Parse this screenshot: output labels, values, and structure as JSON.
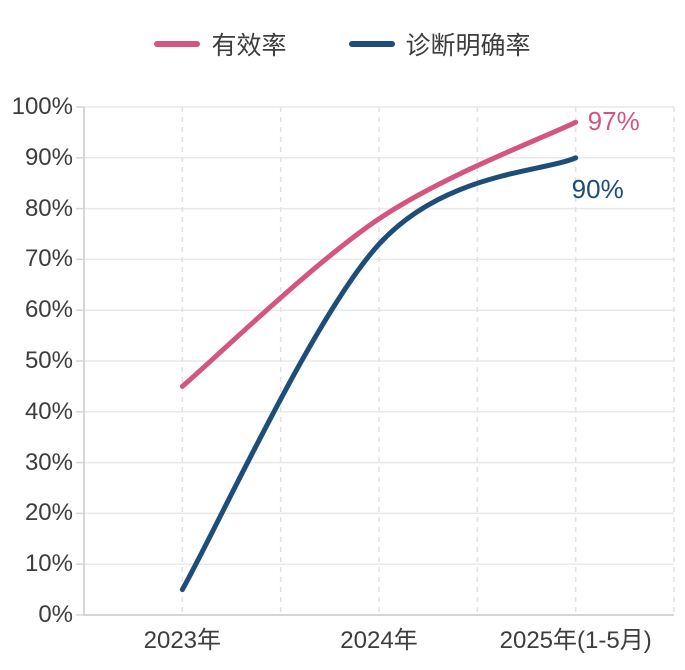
{
  "chart_data": {
    "type": "line",
    "smooth": true,
    "title": "",
    "xlabel": "",
    "ylabel": "",
    "categories": [
      "2023年",
      "2024年",
      "2025年(1-5月)"
    ],
    "series": [
      {
        "name": "有效率",
        "color": "#d4567e",
        "values": [
          45,
          78,
          97
        ],
        "end_label": "97%"
      },
      {
        "name": "诊断明确率",
        "color": "#1d4d78",
        "values": [
          5,
          73,
          90
        ],
        "end_label": "90%"
      }
    ],
    "ylim": [
      0,
      100
    ],
    "y_tick_step": 10,
    "y_tick_labels": [
      "0%",
      "10%",
      "20%",
      "30%",
      "40%",
      "50%",
      "60%",
      "70%",
      "80%",
      "90%",
      "100%"
    ],
    "legend_position": "top",
    "grid": {
      "horizontal": "solid",
      "vertical": "dashed"
    }
  },
  "style_colors": {
    "axis_line": "#d6d6d6",
    "grid_h": "#e9e9e9",
    "grid_v": "#e2e2e2",
    "tick_text": "#3d3d3d"
  }
}
